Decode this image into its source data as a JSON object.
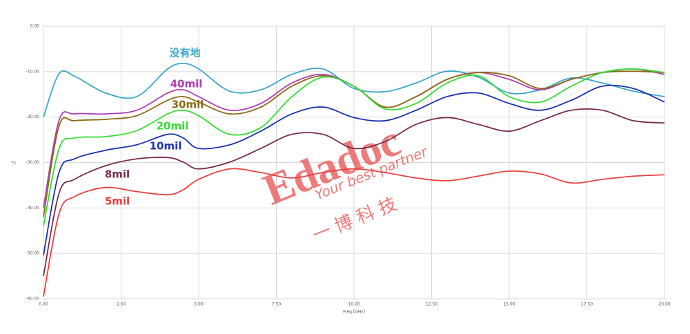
{
  "chart_data": {
    "type": "line",
    "x_label": "Freq [GHz]",
    "y_label": "Y1",
    "x": [
      0,
      0.5,
      1,
      2,
      3,
      4,
      4.5,
      5,
      6,
      7,
      8,
      9,
      10,
      11,
      12,
      13,
      14,
      15,
      16,
      17,
      18,
      19,
      20
    ],
    "xlim": [
      0,
      20
    ],
    "xticks": [
      {
        "value": 0,
        "label": "0.00"
      },
      {
        "value": 2.5,
        "label": "2.50"
      },
      {
        "value": 5,
        "label": "5.00"
      },
      {
        "value": 7.5,
        "label": "7.50"
      },
      {
        "value": 10,
        "label": "10.00"
      },
      {
        "value": 12.5,
        "label": "12.50"
      },
      {
        "value": 15,
        "label": "15.00"
      },
      {
        "value": 17.5,
        "label": "17.50"
      },
      {
        "value": 20,
        "label": "20.00"
      }
    ],
    "ylim": [
      -60,
      0
    ],
    "yticks": [
      {
        "value": 0,
        "label": "0.00"
      },
      {
        "value": -10,
        "label": "-10.00"
      },
      {
        "value": -20,
        "label": "-20.00"
      },
      {
        "value": -30,
        "label": "-30.00"
      },
      {
        "value": -40,
        "label": "-40.00"
      },
      {
        "value": -50,
        "label": "-50.00"
      },
      {
        "value": -60,
        "label": "-60.00"
      }
    ],
    "grid": true,
    "series": [
      {
        "name": "没有地",
        "color": "#3aa6c8",
        "values": [
          -20,
          -10.5,
          -11,
          -14.7,
          -15.5,
          -9.4,
          -8.2,
          -9.4,
          -14.3,
          -14,
          -10.6,
          -9.4,
          -13.7,
          -14.4,
          -12.5,
          -9.9,
          -11.2,
          -14.7,
          -14,
          -11.4,
          -12.5,
          -14.3,
          -15.5
        ]
      },
      {
        "name": "40mil",
        "color": "#b03cb0",
        "values": [
          -40,
          -20.8,
          -19.3,
          -19.3,
          -18.5,
          -14.7,
          -14,
          -15.5,
          -18.5,
          -17,
          -12.5,
          -10.6,
          -13.2,
          -17.8,
          -15.5,
          -11.7,
          -10.2,
          -11.7,
          -14,
          -11.7,
          -10.2,
          -9.4,
          -10.6
        ]
      },
      {
        "name": "30mil",
        "color": "#8b6a14",
        "values": [
          -42,
          -22,
          -20.8,
          -20.5,
          -19.7,
          -16.3,
          -15.5,
          -16.7,
          -19.3,
          -17.8,
          -13.2,
          -10.9,
          -13.2,
          -17.8,
          -15.5,
          -11.7,
          -10.2,
          -10.9,
          -13.7,
          -11.7,
          -10.2,
          -9.9,
          -10.2
        ]
      },
      {
        "name": "20mil",
        "color": "#33dd33",
        "values": [
          -44,
          -27,
          -24.6,
          -24.3,
          -23,
          -19.3,
          -18.5,
          -19.7,
          -23.8,
          -22.3,
          -15.5,
          -11.2,
          -13.2,
          -18.2,
          -17,
          -12.5,
          -10.9,
          -15.5,
          -16.7,
          -13.2,
          -10.2,
          -9.4,
          -10.2
        ]
      },
      {
        "name": "10mil",
        "color": "#1a32b0",
        "values": [
          -50.4,
          -32.2,
          -29.2,
          -27.3,
          -26.1,
          -23.8,
          -24.6,
          -26.9,
          -26.1,
          -23.1,
          -19.3,
          -17.8,
          -20.1,
          -20.8,
          -18.5,
          -15.5,
          -14.7,
          -17,
          -18.5,
          -16.3,
          -13.2,
          -13.7,
          -16.7
        ]
      },
      {
        "name": "8mil",
        "color": "#7a2a48",
        "values": [
          -55,
          -36.8,
          -33.7,
          -30.7,
          -29.2,
          -28.9,
          -29.9,
          -31.4,
          -29.9,
          -26.9,
          -23.8,
          -23.8,
          -26.9,
          -25.4,
          -21.6,
          -20.1,
          -21.6,
          -23.1,
          -20.8,
          -18.5,
          -18.5,
          -20.8,
          -21.3
        ]
      },
      {
        "name": "5mil",
        "color": "#e84040",
        "values": [
          -59.5,
          -41.3,
          -37.5,
          -35.5,
          -36.4,
          -37.1,
          -36,
          -33.7,
          -31.4,
          -32.2,
          -33.4,
          -32.2,
          -31.4,
          -32.2,
          -33.4,
          -34,
          -33,
          -31.9,
          -32.5,
          -34.5,
          -33.7,
          -33,
          -32.7
        ]
      }
    ],
    "watermark": {
      "brand": "Edadoc",
      "slogan": "Your best partner",
      "company": "一 博 科 技"
    }
  }
}
